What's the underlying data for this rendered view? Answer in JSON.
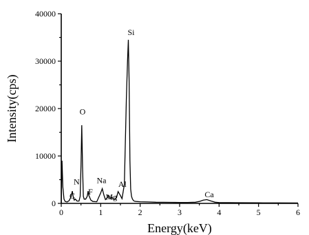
{
  "chart_data": {
    "type": "line",
    "title": "",
    "xlabel": "Energy(keV)",
    "ylabel": "Intensity(cps)",
    "xlim": [
      0,
      6
    ],
    "ylim": [
      0,
      40000
    ],
    "xticks": [
      0,
      1,
      2,
      3,
      4,
      5,
      6
    ],
    "yticks": [
      0,
      10000,
      20000,
      30000,
      40000
    ],
    "grid": false,
    "legend": "none",
    "series": [
      {
        "x": [
          0.0,
          0.02,
          0.04,
          0.07,
          0.1,
          0.15,
          0.2,
          0.25,
          0.28,
          0.3,
          0.33,
          0.36,
          0.4,
          0.45,
          0.48,
          0.5,
          0.52,
          0.54,
          0.56,
          0.58,
          0.62,
          0.66,
          0.68,
          0.7,
          0.75,
          0.8,
          0.9,
          1.0,
          1.04,
          1.08,
          1.12,
          1.16,
          1.2,
          1.25,
          1.28,
          1.32,
          1.36,
          1.4,
          1.44,
          1.49,
          1.54,
          1.6,
          1.65,
          1.68,
          1.7,
          1.72,
          1.74,
          1.76,
          1.78,
          1.8,
          1.83,
          1.86,
          1.9,
          2.0,
          2.2,
          2.4,
          2.6,
          2.8,
          3.0,
          3.2,
          3.4,
          3.5,
          3.6,
          3.69,
          3.8,
          3.9,
          4.0,
          4.5,
          5.0,
          5.5,
          6.0
        ],
        "y": [
          0,
          9000,
          3500,
          900,
          400,
          300,
          600,
          1400,
          2600,
          1500,
          700,
          900,
          500,
          500,
          1500,
          8000,
          16500,
          7500,
          1500,
          900,
          900,
          1500,
          2600,
          1700,
          700,
          400,
          350,
          2200,
          3100,
          1800,
          800,
          1100,
          1700,
          1000,
          1400,
          900,
          800,
          1200,
          2500,
          1800,
          1000,
          4000,
          22000,
          30000,
          34500,
          26000,
          9000,
          3000,
          1500,
          1000,
          600,
          450,
          400,
          350,
          300,
          250,
          230,
          220,
          210,
          200,
          250,
          400,
          700,
          800,
          500,
          250,
          180,
          150,
          120,
          100,
          80
        ]
      }
    ],
    "peak_labels": [
      {
        "text": "N",
        "x": 0.39,
        "y": 4000
      },
      {
        "text": "C",
        "x": 0.28,
        "y": 1000
      },
      {
        "text": "O",
        "x": 0.54,
        "y": 18800
      },
      {
        "text": "F",
        "x": 0.74,
        "y": 1900
      },
      {
        "text": "Na",
        "x": 1.02,
        "y": 4300
      },
      {
        "text": "Mg",
        "x": 1.27,
        "y": 800
      },
      {
        "text": "Al",
        "x": 1.55,
        "y": 3500
      },
      {
        "text": "Si",
        "x": 1.77,
        "y": 35500
      },
      {
        "text": "Ca",
        "x": 3.75,
        "y": 1300
      }
    ]
  }
}
